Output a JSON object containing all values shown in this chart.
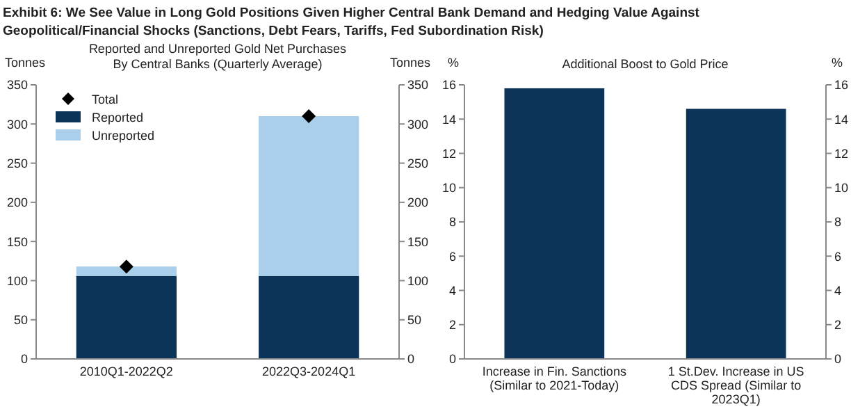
{
  "chart_data": [
    {
      "type": "bar",
      "title": "Exhibit 6: We See Value in Long Gold Positions Given Higher Central Bank Demand and Hedging Value Against Geopolitical/Financial Shocks (Sanctions, Debt Fears, Tariffs, Fed Subordination Risk)",
      "subtitle": "Reported and Unreported Gold Net Purchases By Central Banks (Quarterly Average)",
      "ylabel": "Tonnes",
      "y2label": "Tonnes",
      "categories": [
        "2010Q1-2022Q2",
        "2022Q3-2024Q1"
      ],
      "stacked": true,
      "series": [
        {
          "name": "Reported",
          "color": "#0c3358",
          "values": [
            106,
            106
          ]
        },
        {
          "name": "Unreported",
          "color": "#a9cfea",
          "values": [
            12,
            204
          ]
        },
        {
          "name": "Total",
          "type": "scatter",
          "marker": "diamond",
          "color": "#000000",
          "values": [
            118,
            310
          ]
        }
      ],
      "ylim": [
        0,
        350
      ],
      "yticks": [
        0,
        50,
        100,
        150,
        200,
        250,
        300,
        350
      ],
      "y2lim": [
        0,
        350
      ],
      "y2ticks": [
        0,
        50,
        100,
        150,
        200,
        250,
        300,
        350
      ],
      "legend": "top left"
    },
    {
      "type": "bar",
      "title": "Additional Boost to Gold Price",
      "ylabel": "%",
      "y2label": "%",
      "categories": [
        "Increase in Fin. Sanctions (Similar to 2021-Today)",
        "1 St.Dev. Increase in US CDS Spread (Similar to 2023Q1)"
      ],
      "values": [
        15.8,
        14.6
      ],
      "color": "#0c3358",
      "ylim": [
        0,
        16
      ],
      "yticks": [
        0,
        2,
        4,
        6,
        8,
        10,
        12,
        14,
        16
      ],
      "y2lim": [
        0,
        16
      ],
      "y2ticks": [
        0,
        2,
        4,
        6,
        8,
        10,
        12,
        14,
        16
      ]
    }
  ]
}
